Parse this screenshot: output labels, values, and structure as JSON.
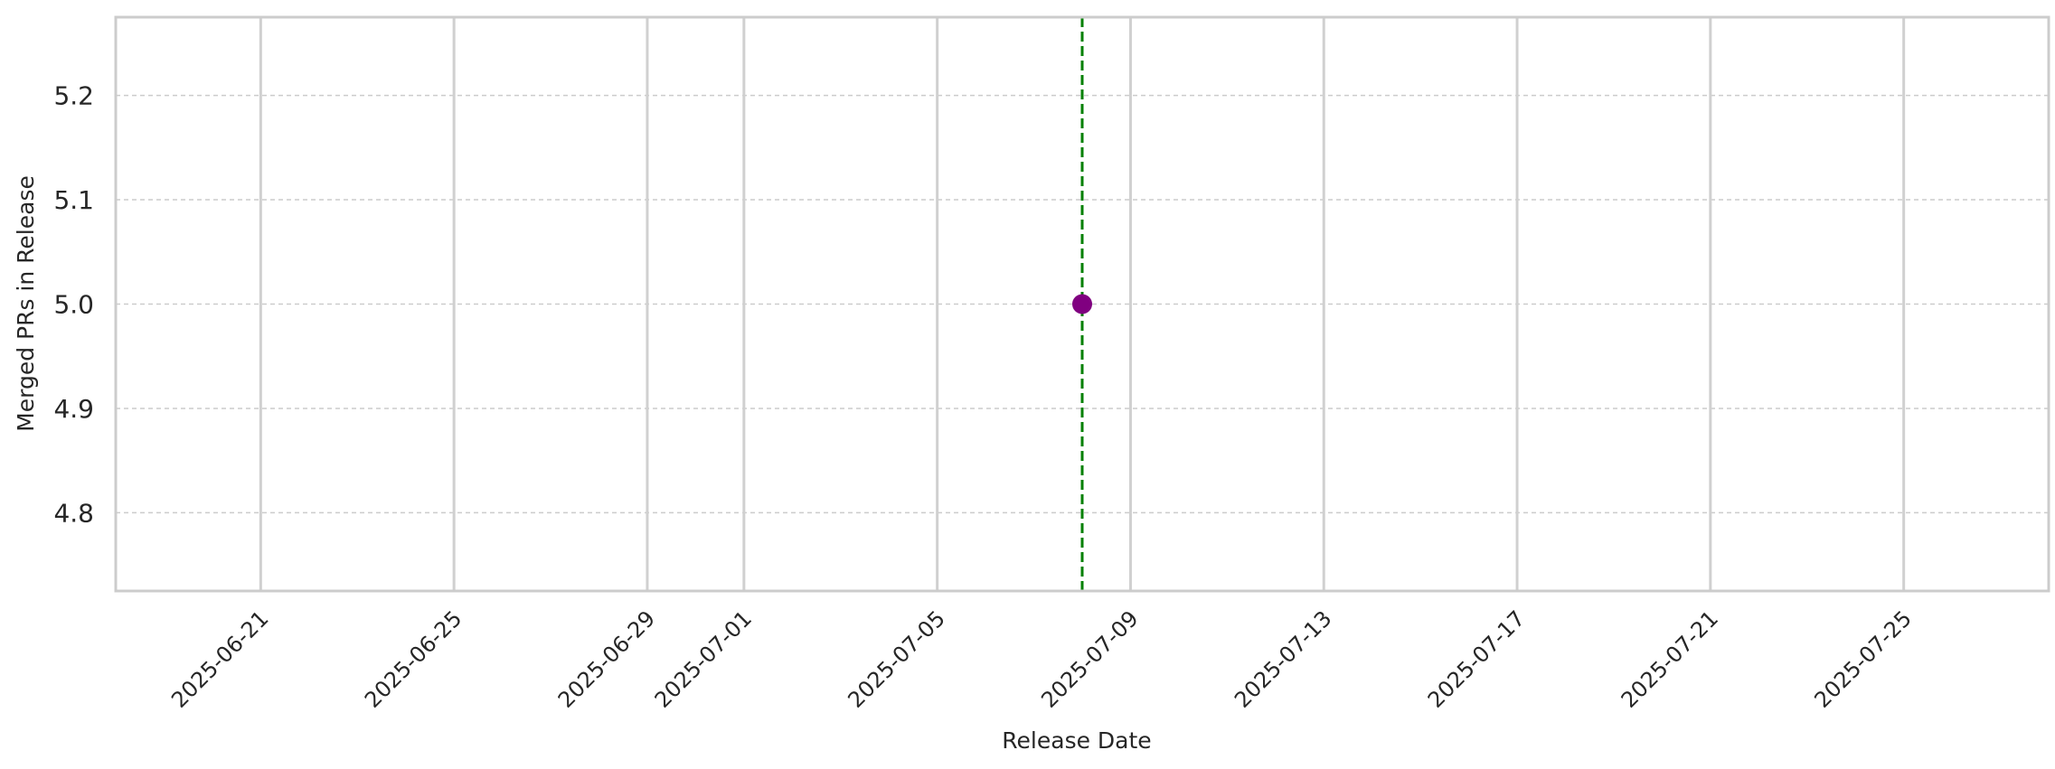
{
  "chart_data": {
    "type": "scatter",
    "title": "",
    "xlabel": "Release Date",
    "ylabel": "Merged PRs in Release",
    "x_ticks": [
      "2025-06-21",
      "2025-06-25",
      "2025-06-29",
      "2025-07-01",
      "2025-07-05",
      "2025-07-09",
      "2025-07-13",
      "2025-07-17",
      "2025-07-21",
      "2025-07-25"
    ],
    "y_ticks": [
      "4.8",
      "4.9",
      "5.0",
      "5.1",
      "5.2"
    ],
    "xlim": [
      "2025-06-18",
      "2025-07-28"
    ],
    "ylim": [
      4.725,
      5.275
    ],
    "points": [
      {
        "x": "2025-07-08",
        "y": 5.0
      }
    ],
    "reference_line": {
      "x": "2025-07-08",
      "style": "dashed"
    },
    "grid": true,
    "legend": "none",
    "colors": {
      "marker": "#800080",
      "reference_line": "#008000",
      "major_grid": "#d0d0d0",
      "minor_grid": "#cccccc",
      "spine": "#cccccc"
    }
  }
}
